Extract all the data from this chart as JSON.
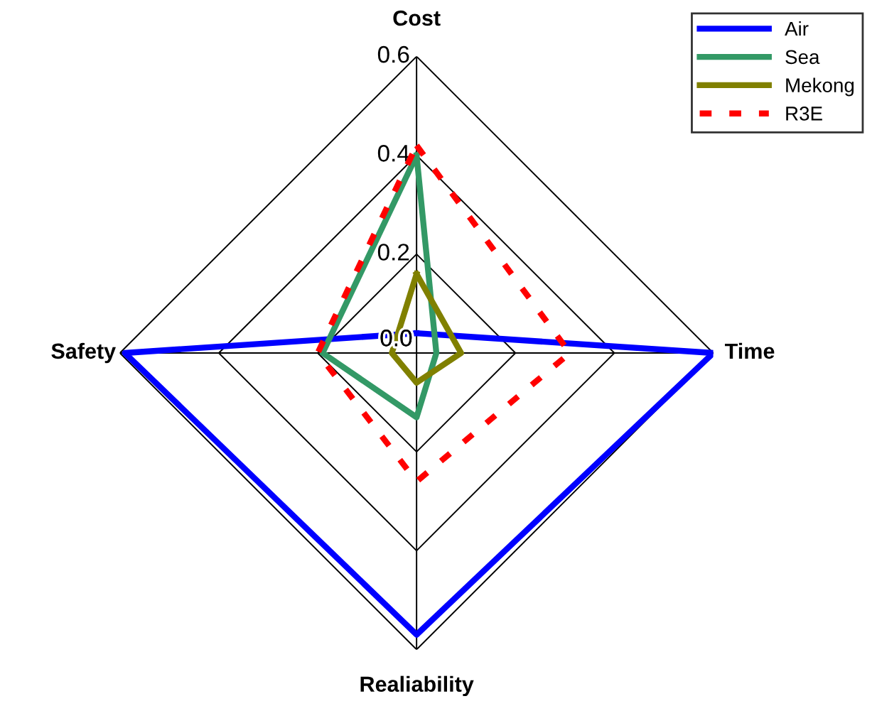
{
  "chart_data": {
    "type": "radar",
    "categories": [
      "Cost",
      "Time",
      "Realiability",
      "Safety"
    ],
    "ylim": [
      0,
      0.6
    ],
    "yticks": [
      {
        "value": 0,
        "label": "0.0"
      },
      {
        "value": 0.2,
        "label": "0.2"
      },
      {
        "value": 0.4,
        "label": "0.4"
      },
      {
        "value": 0.6,
        "label": "0.6"
      }
    ],
    "grid": true,
    "legend": "top right",
    "series": [
      {
        "name": "Air",
        "color": "#0000ff",
        "values": [
          0.04,
          0.6,
          0.57,
          0.59
        ]
      },
      {
        "name": "Sea",
        "color": "#339966",
        "values": [
          0.4,
          0.04,
          0.13,
          0.19
        ]
      },
      {
        "name": "Mekong",
        "color": "#808000",
        "values": [
          0.16,
          0.09,
          0.06,
          0.05
        ]
      },
      {
        "name": "R3E",
        "color": "#ff0000",
        "line_style": "dashed",
        "values": [
          0.42,
          0.31,
          0.26,
          0.2
        ]
      }
    ]
  }
}
